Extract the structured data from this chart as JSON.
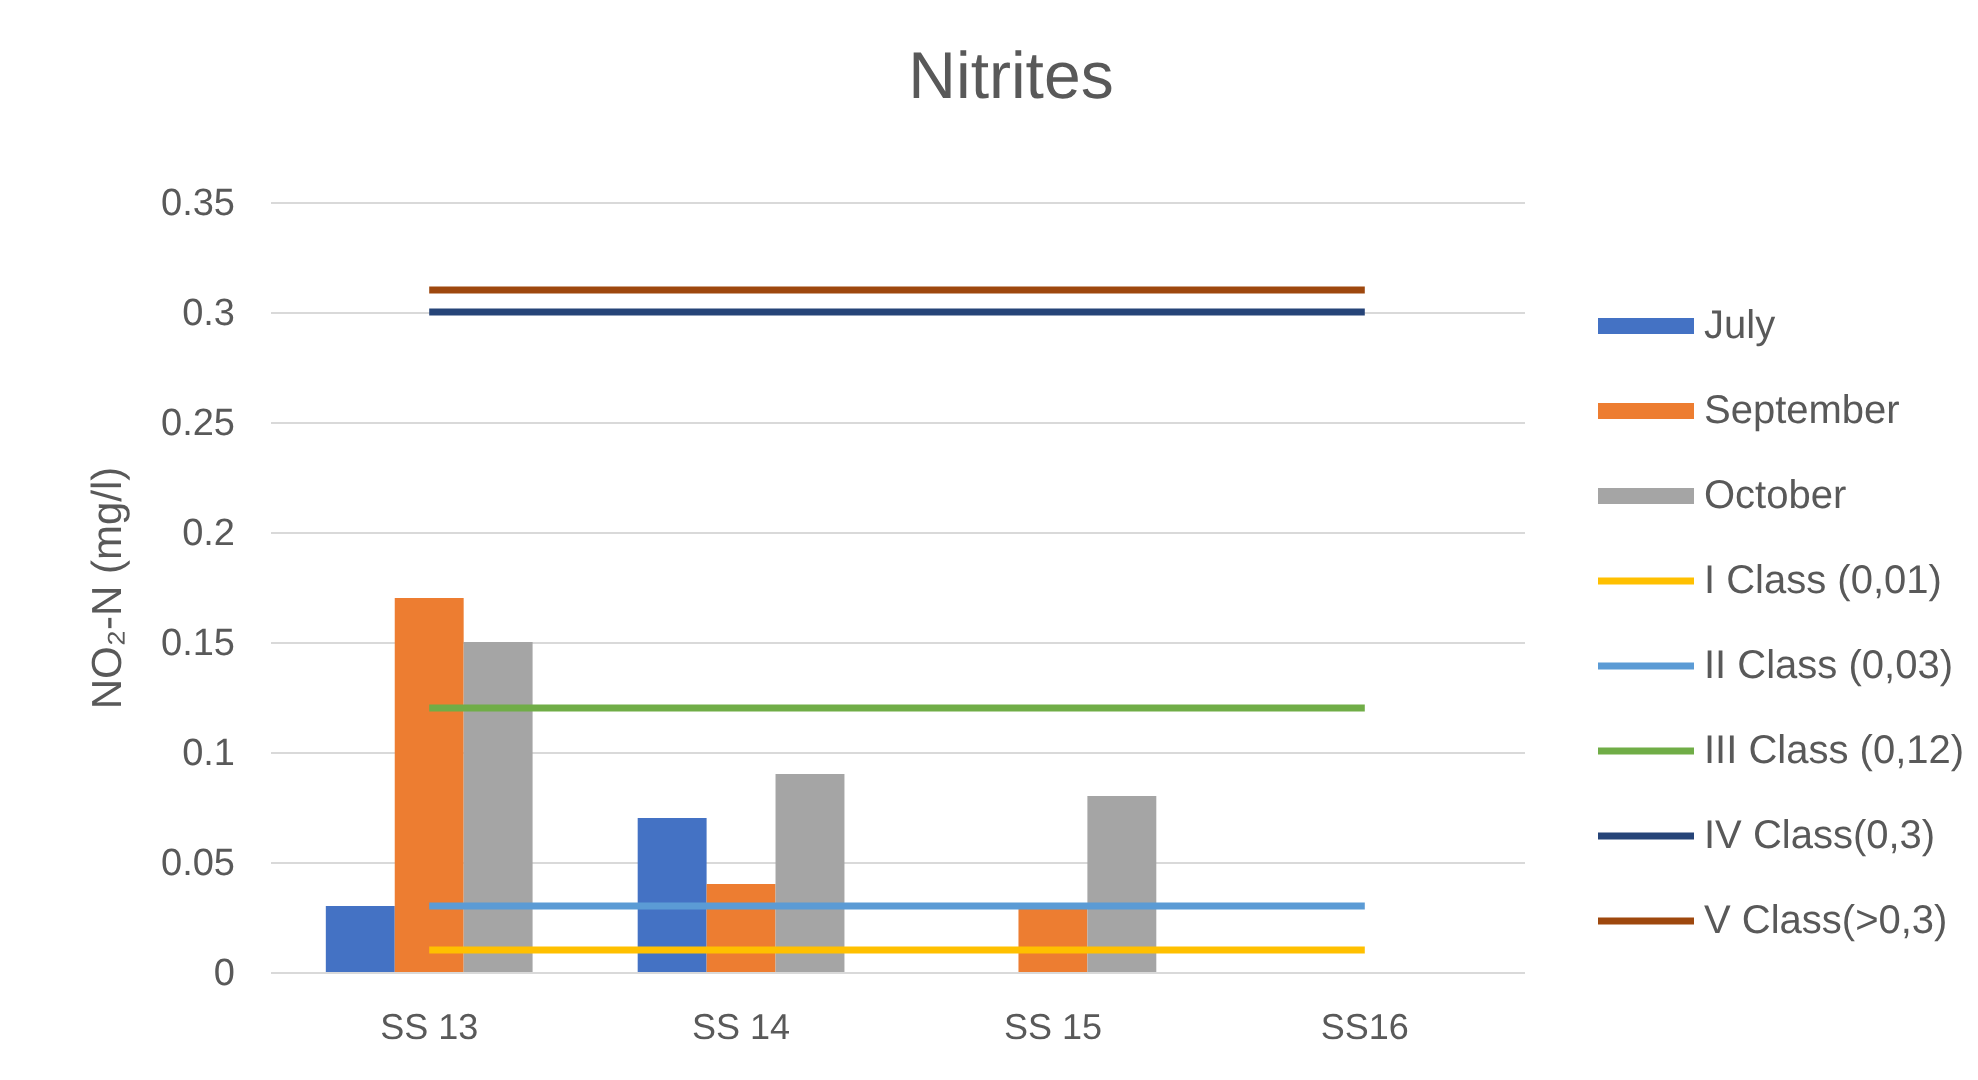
{
  "chart_data": {
    "type": "bar",
    "title": "Nitrites",
    "ylabel": "NO₂-N (mg/l)",
    "categories": [
      "SS 13",
      "SS 14",
      "SS 15",
      "SS16"
    ],
    "series": [
      {
        "name": "July",
        "color": "#4472c4",
        "values": [
          0.03,
          0.07,
          null,
          null
        ]
      },
      {
        "name": "September",
        "color": "#ed7d31",
        "values": [
          0.17,
          0.04,
          0.03,
          null
        ]
      },
      {
        "name": "October",
        "color": "#a5a5a5",
        "values": [
          0.15,
          0.09,
          0.08,
          null
        ]
      },
      {
        "name": "I Class (0,01)",
        "type": "line",
        "color": "#ffc000",
        "values": [
          0.01,
          0.01,
          0.01,
          0.01
        ]
      },
      {
        "name": "II Class (0,03)",
        "type": "line",
        "color": "#5b9bd5",
        "values": [
          0.03,
          0.03,
          0.03,
          0.03
        ]
      },
      {
        "name": "III Class (0,12)",
        "type": "line",
        "color": "#70ad47",
        "values": [
          0.12,
          0.12,
          0.12,
          0.12
        ]
      },
      {
        "name": "IV Class(0,3)",
        "type": "line",
        "color": "#264478",
        "values": [
          0.3,
          0.3,
          0.3,
          0.3
        ]
      },
      {
        "name": "V Class(>0,3)",
        "type": "line",
        "color": "#9e480e",
        "values": [
          0.31,
          0.31,
          0.31,
          0.31
        ]
      }
    ],
    "ylim": [
      0,
      0.35
    ],
    "yticks": [
      0,
      0.05,
      0.1,
      0.15,
      0.2,
      0.25,
      0.3,
      0.35
    ],
    "grid": "y",
    "legend": "right"
  }
}
